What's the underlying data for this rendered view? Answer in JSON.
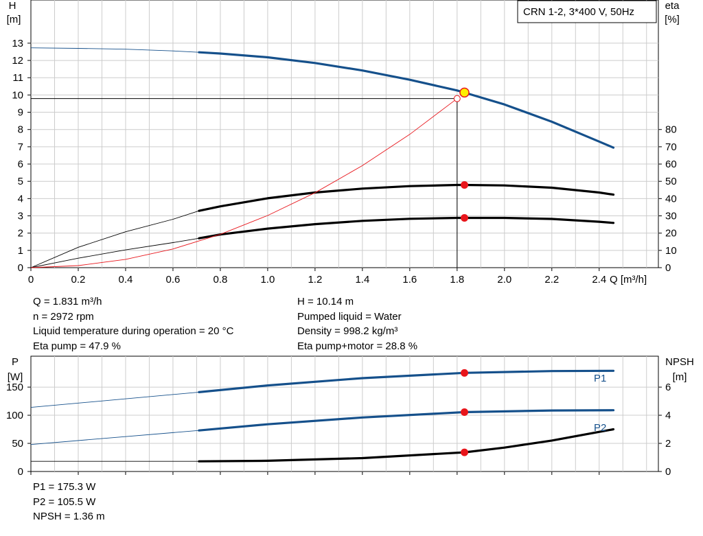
{
  "legend_box": "CRN 1-2, 3*400 V, 50Hz",
  "info_top_left": [
    "Q = 1.831 m³/h",
    "n = 2972 rpm",
    "Liquid temperature during operation = 20 °C",
    "Eta pump = 47.9 %"
  ],
  "info_top_right": [
    "H = 10.14 m",
    "Pumped liquid = Water",
    "Density = 998.2 kg/m³",
    "Eta pump+motor = 28.8 %"
  ],
  "info_bottom": [
    "P1 = 175.3 W",
    "P2 = 105.5 W",
    "NPSH = 1.36 m"
  ],
  "colors": {
    "blue": "#15508b",
    "black": "#000000",
    "red": "#e8151b",
    "duty_yellow": "#ffee00",
    "grid": "#cccccc"
  },
  "chart_data": [
    {
      "type": "line",
      "title": "CRN 1-2, 3*400 V, 50Hz",
      "xlabel": "Q [m³/h]",
      "ylabel_left": [
        "H",
        "[m]"
      ],
      "ylabel_right": [
        "eta",
        "[%]"
      ],
      "xlim": [
        0,
        2.65
      ],
      "xticks": [
        0,
        0.2,
        0.4,
        0.6,
        0.8,
        1.0,
        1.2,
        1.4,
        1.6,
        1.8,
        2.0,
        2.2,
        2.4
      ],
      "xtick_labels": [
        "0",
        "0.2",
        "0.4",
        "0.6",
        "0.8",
        "1.0",
        "1.2",
        "1.4",
        "1.6",
        "1.8",
        "2.0",
        "2.2",
        "2.4"
      ],
      "ylim_left": [
        0,
        15.5
      ],
      "yticks_left": [
        0,
        1,
        2,
        3,
        4,
        5,
        6,
        7,
        8,
        9,
        10,
        11,
        12,
        13
      ],
      "ylim_right": [
        0,
        155
      ],
      "yticks_right": [
        0,
        10,
        20,
        30,
        40,
        50,
        60,
        70,
        80
      ],
      "grid": true,
      "series": [
        {
          "key": "H",
          "axis": "left",
          "color": "#15508b",
          "x": [
            0,
            0.2,
            0.4,
            0.6,
            0.71,
            0.8,
            1.0,
            1.2,
            1.4,
            1.6,
            1.8,
            1.831,
            2.0,
            2.2,
            2.4,
            2.46
          ],
          "y": [
            12.73,
            12.7,
            12.65,
            12.55,
            12.47,
            12.4,
            12.18,
            11.85,
            11.42,
            10.88,
            10.26,
            10.14,
            9.45,
            8.45,
            7.3,
            6.95
          ],
          "solid_from": 0.71
        },
        {
          "key": "eta_pump",
          "axis": "right",
          "color": "#000000",
          "x": [
            0,
            0.2,
            0.4,
            0.6,
            0.71,
            0.8,
            1.0,
            1.2,
            1.4,
            1.6,
            1.8,
            1.831,
            2.0,
            2.2,
            2.4,
            2.46
          ],
          "y": [
            0,
            11.8,
            20.8,
            28.0,
            32.9,
            35.5,
            40.2,
            43.5,
            45.8,
            47.2,
            47.9,
            47.9,
            47.6,
            46.3,
            43.5,
            42.3
          ],
          "solid_from": 0.71
        },
        {
          "key": "eta_pump_motor",
          "axis": "right",
          "color": "#000000",
          "x": [
            0,
            0.2,
            0.4,
            0.6,
            0.71,
            0.8,
            1.0,
            1.2,
            1.4,
            1.6,
            1.8,
            1.831,
            2.0,
            2.2,
            2.4,
            2.46
          ],
          "y": [
            0,
            5.5,
            10.3,
            14.5,
            17.0,
            19.2,
            22.6,
            25.2,
            27.1,
            28.3,
            28.8,
            28.8,
            28.8,
            28.2,
            26.6,
            25.9
          ],
          "solid_from": 0.71
        },
        {
          "key": "system_curve",
          "axis": "left",
          "color": "#e8151b",
          "x": [
            0,
            0.2,
            0.4,
            0.6,
            0.8,
            1.0,
            1.2,
            1.4,
            1.6,
            1.8
          ],
          "y": [
            0,
            0.12,
            0.48,
            1.08,
            1.93,
            3.02,
            4.34,
            5.91,
            7.72,
            9.79
          ],
          "thin": true
        }
      ],
      "duty_point": {
        "x": 1.831,
        "H": 10.14,
        "eta_pump": 47.9,
        "eta_pump_motor": 28.8
      },
      "crosshair": {
        "x": 1.8,
        "y": 9.79
      }
    },
    {
      "type": "line",
      "xlim": [
        0,
        2.65
      ],
      "ylabel_left": [
        "P",
        "[W]"
      ],
      "ylabel_right": [
        "NPSH",
        "[m]"
      ],
      "ylim_left": [
        0,
        205
      ],
      "yticks_left": [
        0,
        50,
        100,
        150
      ],
      "ylim_right": [
        0,
        8.2
      ],
      "yticks_right": [
        0,
        2,
        4,
        6
      ],
      "grid": true,
      "series": [
        {
          "key": "P1",
          "name": "P1",
          "axis": "left",
          "color": "#15508b",
          "x": [
            0,
            0.71,
            1.0,
            1.4,
            1.831,
            2.2,
            2.46
          ],
          "y": [
            114,
            141,
            153,
            166,
            175.3,
            178.5,
            179
          ],
          "solid_from": 0.71
        },
        {
          "key": "P2",
          "name": "P2",
          "axis": "left",
          "color": "#15508b",
          "x": [
            0,
            0.71,
            1.0,
            1.4,
            1.831,
            2.2,
            2.46
          ],
          "y": [
            48,
            73,
            84,
            96,
            105.5,
            108.5,
            109
          ],
          "solid_from": 0.71
        },
        {
          "key": "NPSH",
          "axis": "right",
          "color": "#000000",
          "x": [
            0,
            0.71,
            1.0,
            1.4,
            1.831,
            2.0,
            2.2,
            2.46
          ],
          "y": [
            0.72,
            0.72,
            0.76,
            0.95,
            1.36,
            1.7,
            2.2,
            3.0
          ],
          "solid_from": 0.71
        }
      ],
      "duty_point": {
        "x": 1.831,
        "P1": 175.3,
        "P2": 105.5,
        "NPSH": 1.36
      }
    }
  ]
}
